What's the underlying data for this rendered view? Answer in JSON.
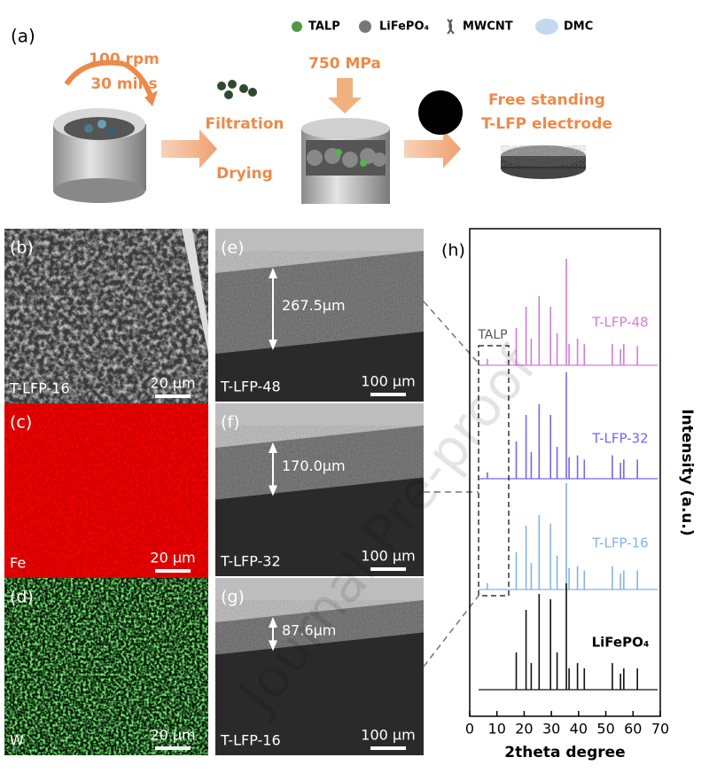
{
  "schematic": {
    "label": "(a)",
    "legend": [
      "TALP",
      "LiFePO₄",
      "MWCNT",
      "DMC"
    ],
    "mixing": [
      "100 rpm",
      "30 mins"
    ],
    "filtration": [
      "Filtration",
      "Drying"
    ],
    "pressing": "750 MPa",
    "product": [
      "Free standing",
      "T-LFP electrode"
    ]
  },
  "images": [
    {
      "label": "(b)",
      "caption": "T-LFP-16",
      "scale": "20 μm"
    },
    {
      "label": "(c)",
      "caption": "Fe",
      "scale": "20 μm"
    },
    {
      "label": "(d)",
      "caption": "W",
      "scale": "20 μm"
    },
    {
      "label": "(e)",
      "thickness": "267.5μm",
      "caption": "T-LFP-48",
      "scale": "100 μm"
    },
    {
      "label": "(f)",
      "thickness": "170.0μm",
      "caption": "T-LFP-32",
      "scale": "100 μm"
    },
    {
      "label": "(g)",
      "thickness": "87.6μm",
      "caption": "T-LFP-16",
      "scale": "100 μm"
    }
  ],
  "chart_data": {
    "type": "stick",
    "label": "(h)",
    "annotation": "TALP",
    "xlabel": "2theta degree",
    "ylabel": "Intensity (a.u.)",
    "xlim": [
      0,
      70
    ],
    "xticks": [
      0,
      10,
      20,
      30,
      40,
      50,
      60,
      70
    ],
    "x": [
      6.5,
      17.1,
      20.7,
      22.6,
      25.5,
      29.7,
      32.1,
      35.5,
      36.5,
      39.6,
      42.1,
      52.4,
      55.4,
      56.6,
      61.6
    ],
    "series": [
      {
        "name": "T-LFP-48",
        "color": "#d57ae0",
        "values": [
          6,
          35,
          55,
          25,
          65,
          55,
          30,
          100,
          20,
          25,
          20,
          20,
          15,
          20,
          18
        ]
      },
      {
        "name": "T-LFP-32",
        "color": "#7467ee",
        "values": [
          6,
          35,
          60,
          25,
          70,
          60,
          30,
          100,
          20,
          22,
          18,
          22,
          15,
          18,
          18
        ]
      },
      {
        "name": "T-LFP-16",
        "color": "#84b4e6",
        "values": [
          6,
          35,
          60,
          25,
          70,
          62,
          32,
          100,
          20,
          22,
          18,
          22,
          15,
          18,
          18
        ]
      },
      {
        "name": "LiFePO₄",
        "color": "#111111",
        "values": [
          null,
          35,
          75,
          25,
          90,
          85,
          35,
          100,
          20,
          25,
          20,
          25,
          15,
          20,
          20
        ]
      }
    ]
  },
  "watermark": "Journal Pre-proof"
}
